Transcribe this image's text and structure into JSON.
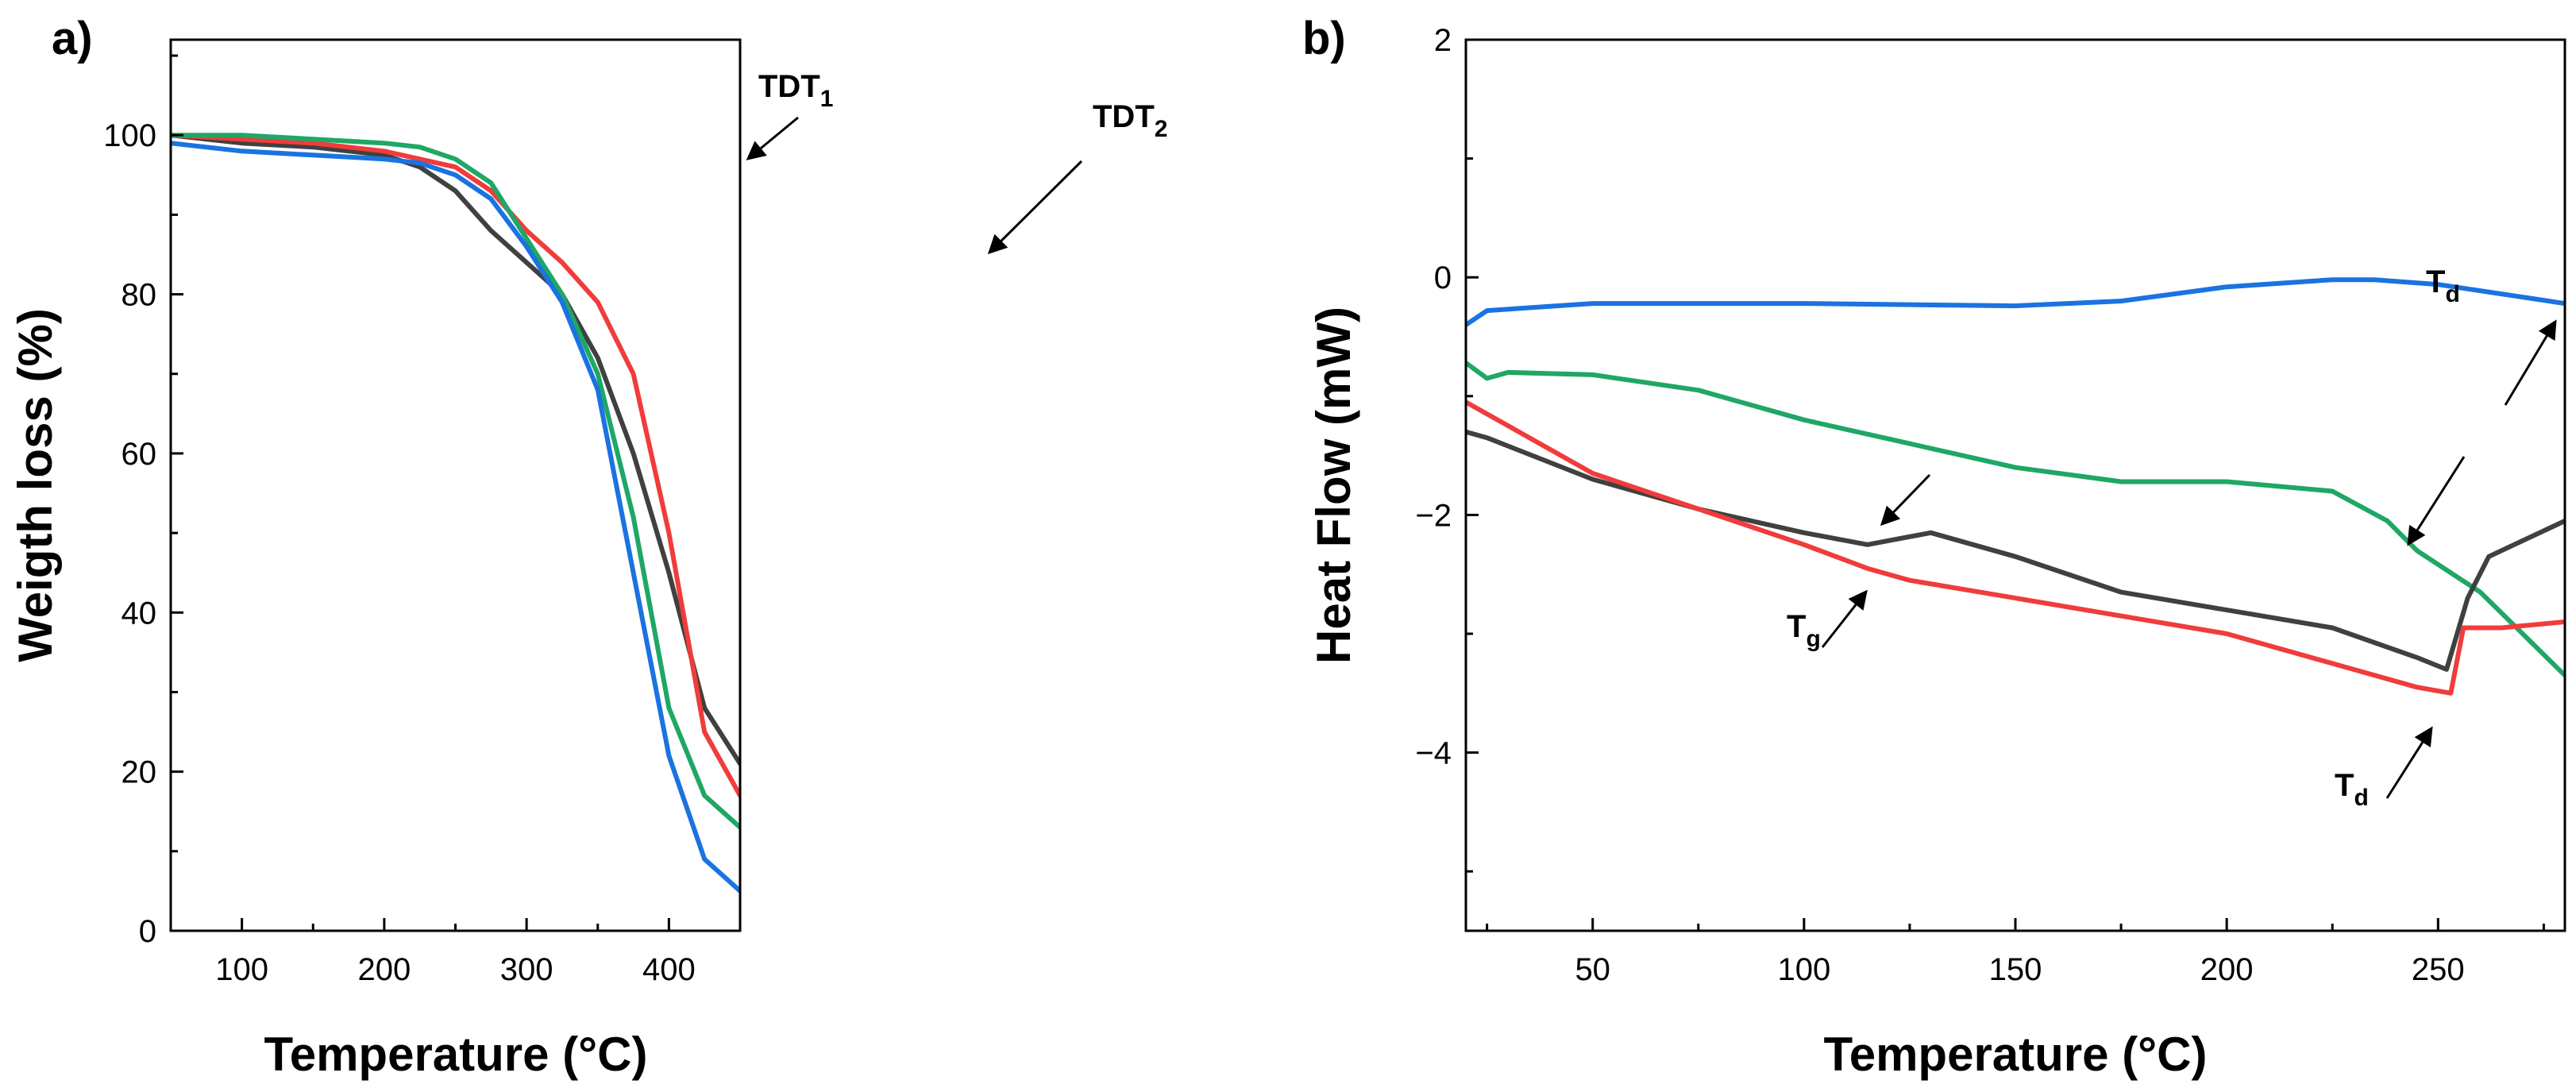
{
  "colors": {
    "black": "#404040",
    "red": "#f03c3c",
    "green": "#1fa765",
    "blue": "#1a73e0"
  },
  "chart_data": [
    {
      "panel_label": "a)",
      "type": "line",
      "xlabel": "Temperature (°C)",
      "ylabel": "Weigth loss (%)",
      "xlim": [
        50,
        450
      ],
      "ylim": [
        0,
        112
      ],
      "xticks": [
        100,
        200,
        300,
        400
      ],
      "yticks": [
        0,
        20,
        40,
        60,
        80,
        100
      ],
      "grid": false,
      "annotations": [
        {
          "text": "TDT",
          "sub": "1",
          "x": 270,
          "y": 96
        },
        {
          "text": "TDT",
          "sub": "2",
          "x": 350,
          "y": 84
        }
      ],
      "series": [
        {
          "color_key": "black",
          "x": [
            50,
            100,
            150,
            200,
            225,
            250,
            275,
            300,
            325,
            350,
            375,
            400,
            425,
            450
          ],
          "y": [
            100,
            99,
            98.5,
            97.5,
            96,
            93,
            88,
            84,
            80,
            72,
            60,
            45,
            28,
            21
          ]
        },
        {
          "color_key": "red",
          "x": [
            50,
            100,
            150,
            200,
            225,
            250,
            275,
            300,
            325,
            350,
            375,
            400,
            425,
            450
          ],
          "y": [
            100,
            99.5,
            99,
            98,
            97,
            96,
            93,
            88,
            84,
            79,
            70,
            50,
            25,
            17
          ]
        },
        {
          "color_key": "green",
          "x": [
            50,
            100,
            150,
            200,
            225,
            250,
            275,
            300,
            325,
            350,
            375,
            400,
            425,
            450
          ],
          "y": [
            100,
            100,
            99.5,
            99,
            98.5,
            97,
            94,
            87,
            80,
            70,
            52,
            28,
            17,
            13
          ]
        },
        {
          "color_key": "blue",
          "x": [
            50,
            100,
            150,
            200,
            225,
            250,
            275,
            300,
            325,
            350,
            375,
            400,
            425,
            450
          ],
          "y": [
            99,
            98,
            97.5,
            97,
            96.5,
            95,
            92,
            86,
            79,
            68,
            45,
            22,
            9,
            5
          ]
        }
      ]
    },
    {
      "panel_label": "b)",
      "type": "line",
      "xlabel": "Temperature (°C)",
      "ylabel": "Heat Flow (mW)",
      "xlim": [
        20,
        280
      ],
      "ylim": [
        -5.5,
        2
      ],
      "xticks": [
        50,
        100,
        150,
        200,
        250
      ],
      "yticks": [
        -4,
        -2,
        0,
        2
      ],
      "ytick_labels": [
        "−4",
        "−2",
        "0",
        "2"
      ],
      "grid": false,
      "annotations": [
        {
          "text": "T",
          "sub": "d",
          "x": 273,
          "y": -0.4
        },
        {
          "text": "T",
          "sub": "g",
          "x": 113,
          "y": -3.35
        },
        {
          "text": "T",
          "sub": "d",
          "x": 246,
          "y": -4.3
        }
      ],
      "series": [
        {
          "color_key": "blue",
          "x": [
            20,
            25,
            50,
            100,
            150,
            175,
            200,
            225,
            235,
            250,
            265,
            280
          ],
          "y": [
            -0.4,
            -0.28,
            -0.22,
            -0.22,
            -0.24,
            -0.2,
            -0.08,
            -0.02,
            -0.02,
            -0.06,
            -0.14,
            -0.22
          ]
        },
        {
          "color_key": "green",
          "x": [
            20,
            25,
            30,
            50,
            75,
            100,
            125,
            150,
            175,
            200,
            225,
            238,
            245,
            260,
            270,
            280
          ],
          "y": [
            -0.72,
            -0.85,
            -0.8,
            -0.82,
            -0.95,
            -1.2,
            -1.4,
            -1.6,
            -1.72,
            -1.72,
            -1.8,
            -2.05,
            -2.3,
            -2.65,
            -3.0,
            -3.35
          ]
        },
        {
          "color_key": "black",
          "x": [
            20,
            25,
            50,
            75,
            100,
            115,
            130,
            150,
            175,
            200,
            225,
            245,
            252,
            257,
            262,
            280
          ],
          "y": [
            -1.3,
            -1.35,
            -1.7,
            -1.95,
            -2.15,
            -2.25,
            -2.15,
            -2.35,
            -2.65,
            -2.8,
            -2.95,
            -3.2,
            -3.3,
            -2.7,
            -2.35,
            -2.05
          ]
        },
        {
          "color_key": "red",
          "x": [
            20,
            25,
            50,
            75,
            100,
            115,
            125,
            150,
            175,
            200,
            225,
            245,
            253,
            256,
            265,
            280
          ],
          "y": [
            -1.05,
            -1.15,
            -1.65,
            -1.95,
            -2.25,
            -2.45,
            -2.55,
            -2.7,
            -2.85,
            -3.0,
            -3.25,
            -3.45,
            -3.5,
            -2.95,
            -2.95,
            -2.9
          ]
        }
      ]
    }
  ]
}
